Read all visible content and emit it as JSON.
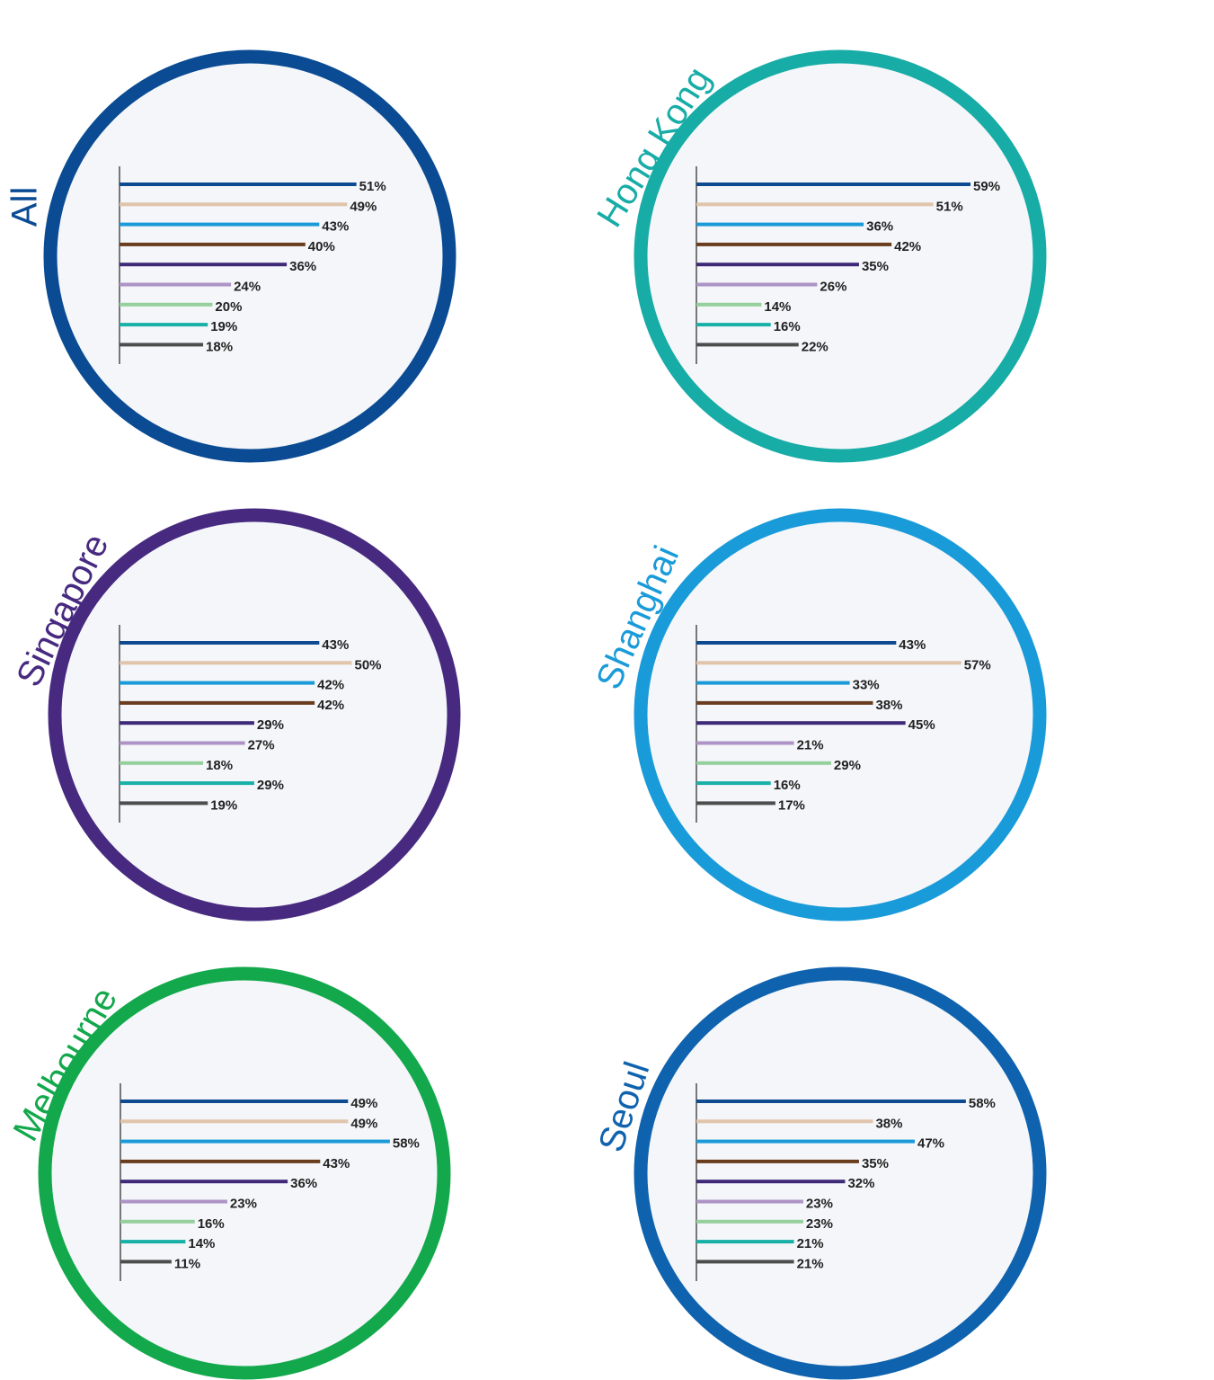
{
  "chart_data": [
    {
      "type": "bar",
      "orientation": "horizontal",
      "title": "All",
      "ring_color": "#0a4b93",
      "categories": [
        null,
        null,
        null,
        null,
        null,
        null,
        null,
        null,
        null
      ],
      "values": [
        51,
        49,
        43,
        40,
        36,
        24,
        20,
        19,
        18
      ],
      "value_labels": [
        "51%",
        "49%",
        "43%",
        "40%",
        "36%",
        "24%",
        "20%",
        "19%",
        "18%"
      ],
      "colors": [
        "#0d4a8f",
        "#e0c4ab",
        "#1a9ad8",
        "#6b3d1f",
        "#3e2a78",
        "#ad93c6",
        "#95cf9c",
        "#19b0a8",
        "#4d4d4d"
      ]
    },
    {
      "type": "bar",
      "orientation": "horizontal",
      "title": "Hong Kong",
      "ring_color": "#17aca6",
      "categories": [
        null,
        null,
        null,
        null,
        null,
        null,
        null,
        null,
        null
      ],
      "values": [
        59,
        51,
        36,
        42,
        35,
        26,
        14,
        16,
        22
      ],
      "value_labels": [
        "59%",
        "51%",
        "36%",
        "42%",
        "35%",
        "26%",
        "14%",
        "16%",
        "22%"
      ],
      "colors": [
        "#0d4a8f",
        "#e0c4ab",
        "#1a9ad8",
        "#6b3d1f",
        "#3e2a78",
        "#ad93c6",
        "#95cf9c",
        "#19b0a8",
        "#4d4d4d"
      ]
    },
    {
      "type": "bar",
      "orientation": "horizontal",
      "title": "Singapore",
      "ring_color": "#472a80",
      "categories": [
        null,
        null,
        null,
        null,
        null,
        null,
        null,
        null,
        null
      ],
      "values": [
        43,
        50,
        42,
        42,
        29,
        27,
        18,
        29,
        19
      ],
      "value_labels": [
        "43%",
        "50%",
        "42%",
        "42%",
        "29%",
        "27%",
        "18%",
        "29%",
        "19%"
      ],
      "colors": [
        "#0d4a8f",
        "#e0c4ab",
        "#1a9ad8",
        "#6b3d1f",
        "#3e2a78",
        "#ad93c6",
        "#95cf9c",
        "#19b0a8",
        "#4d4d4d"
      ]
    },
    {
      "type": "bar",
      "orientation": "horizontal",
      "title": "Shanghai",
      "ring_color": "#1a9bd9",
      "categories": [
        null,
        null,
        null,
        null,
        null,
        null,
        null,
        null,
        null
      ],
      "values": [
        43,
        57,
        33,
        38,
        45,
        21,
        29,
        16,
        17
      ],
      "value_labels": [
        "43%",
        "57%",
        "33%",
        "38%",
        "45%",
        "21%",
        "29%",
        "16%",
        "17%"
      ],
      "colors": [
        "#0d4a8f",
        "#e0c4ab",
        "#1a9ad8",
        "#6b3d1f",
        "#3e2a78",
        "#ad93c6",
        "#95cf9c",
        "#19b0a8",
        "#4d4d4d"
      ]
    },
    {
      "type": "bar",
      "orientation": "horizontal",
      "title": "Melbourne",
      "ring_color": "#12a84b",
      "categories": [
        null,
        null,
        null,
        null,
        null,
        null,
        null,
        null,
        null
      ],
      "values": [
        49,
        49,
        58,
        43,
        36,
        23,
        16,
        14,
        11
      ],
      "value_labels": [
        "49%",
        "49%",
        "58%",
        "43%",
        "36%",
        "23%",
        "16%",
        "14%",
        "11%"
      ],
      "colors": [
        "#0d4a8f",
        "#e0c4ab",
        "#1a9ad8",
        "#6b3d1f",
        "#3e2a78",
        "#ad93c6",
        "#95cf9c",
        "#19b0a8",
        "#4d4d4d"
      ]
    },
    {
      "type": "bar",
      "orientation": "horizontal",
      "title": "Seoul",
      "ring_color": "#0f63ae",
      "categories": [
        null,
        null,
        null,
        null,
        null,
        null,
        null,
        null,
        null
      ],
      "values": [
        58,
        38,
        47,
        35,
        32,
        23,
        23,
        21,
        21
      ],
      "value_labels": [
        "58%",
        "38%",
        "47%",
        "35%",
        "32%",
        "23%",
        "23%",
        "21%",
        "21%"
      ],
      "colors": [
        "#0d4a8f",
        "#e0c4ab",
        "#1a9ad8",
        "#6b3d1f",
        "#3e2a78",
        "#ad93c6",
        "#95cf9c",
        "#19b0a8",
        "#4d4d4d"
      ]
    }
  ]
}
